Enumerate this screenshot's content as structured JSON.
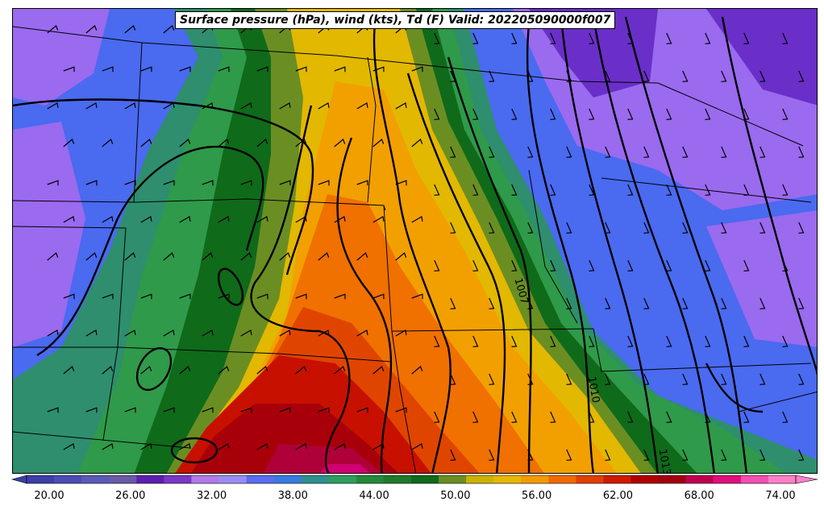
{
  "title": "Surface pressure (hPa), wind (kts), Td (F) Valid: 202205090000f007",
  "contour_labels": [
    "1007",
    "1010",
    "1013"
  ],
  "colorbar": {
    "ticks": [
      "20.00",
      "26.00",
      "32.00",
      "38.00",
      "44.00",
      "50.00",
      "56.00",
      "62.00",
      "68.00",
      "74.00"
    ],
    "colors": [
      "#3b3fa8",
      "#4a4db5",
      "#5a5ab8",
      "#6a5aa8",
      "#5b1fb0",
      "#7a38c8",
      "#b07ae8",
      "#9a8cf5",
      "#5a6cf0",
      "#3a7ae0",
      "#2f8f8f",
      "#2e9e5e",
      "#238a3a",
      "#1f7a2a",
      "#0f6a1a",
      "#6b8e23",
      "#c8b400",
      "#e6b800",
      "#f29a00",
      "#f06a00",
      "#e04000",
      "#d01a00",
      "#b00000",
      "#a00010",
      "#c00050",
      "#e0107a",
      "#f050b0",
      "#ff80c8"
    ]
  },
  "map_colors": {
    "purple": "#9a6aef",
    "deep_purple": "#6a2fc8",
    "blue": "#4a6af0",
    "light_blue": "#5a86f5",
    "teal": "#2e8e6e",
    "green": "#2f9a4a",
    "dark_green": "#0f6a1a",
    "olive": "#6b8e23",
    "yellow": "#e2b800",
    "orange_light": "#f2a000",
    "orange": "#f07000",
    "red_orange": "#e04500",
    "red": "#c81000",
    "dark_red": "#a8000a",
    "crimson": "#b0003a",
    "magenta": "#d00070"
  }
}
